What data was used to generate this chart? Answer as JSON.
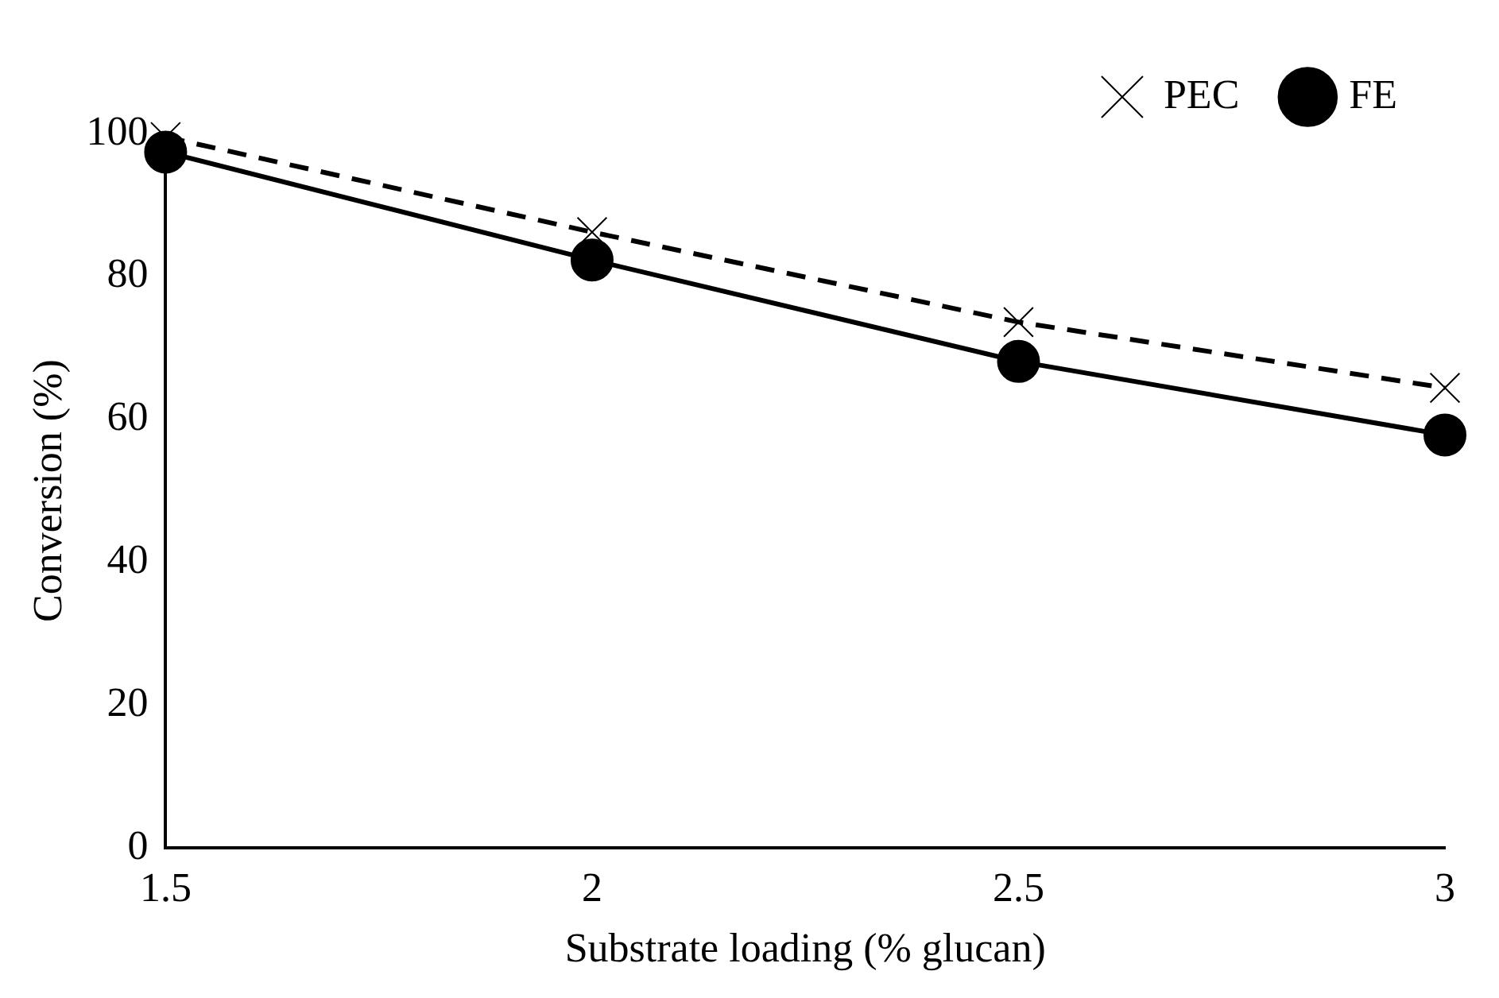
{
  "chart_data": {
    "type": "line",
    "xlabel": "Substrate loading (% glucan)",
    "ylabel": "Conversion (%)",
    "x": [
      1.5,
      2,
      2.5,
      3
    ],
    "xlim": [
      1.5,
      3
    ],
    "xticks": [
      1.5,
      2,
      2.5,
      3
    ],
    "ylim": [
      0,
      100
    ],
    "yticks": [
      0,
      20,
      40,
      60,
      80,
      100
    ],
    "grid": false,
    "legend": "top right",
    "series": [
      {
        "name": "PEC",
        "color": "#000000",
        "values": [
          99.5,
          86.2,
          73.6,
          64.4
        ],
        "marker": "cross",
        "line_style": "dashed"
      },
      {
        "name": "FE",
        "color": "#000000",
        "values": [
          97.4,
          82.3,
          68.1,
          57.8
        ],
        "marker": "circle",
        "line_style": "solid"
      }
    ]
  }
}
